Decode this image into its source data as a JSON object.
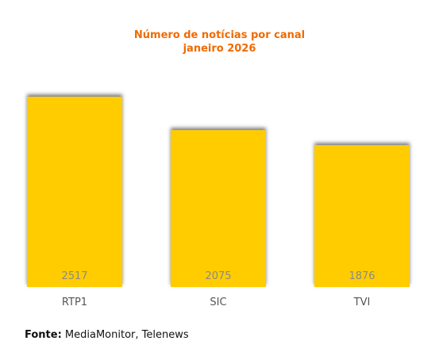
{
  "chart_data": {
    "type": "bar",
    "title": "Número de notícias por canal",
    "subtitle": "janeiro 2026",
    "categories": [
      "RTP1",
      "SIC",
      "TVI"
    ],
    "values": [
      2517,
      2075,
      1876
    ],
    "xlabel": "",
    "ylabel": "",
    "ylim": [
      0,
      2517
    ],
    "grid": false,
    "legend": "none",
    "data_labels": "inside-bottom",
    "colors": {
      "bar": "#ffcc00",
      "shadow": "#555555",
      "title": "#f06a00",
      "data_label": "#8a8a8a",
      "tick_label": "#555555"
    }
  },
  "source": {
    "label": "Fonte:",
    "text": "MediaMonitor, Telenews"
  }
}
